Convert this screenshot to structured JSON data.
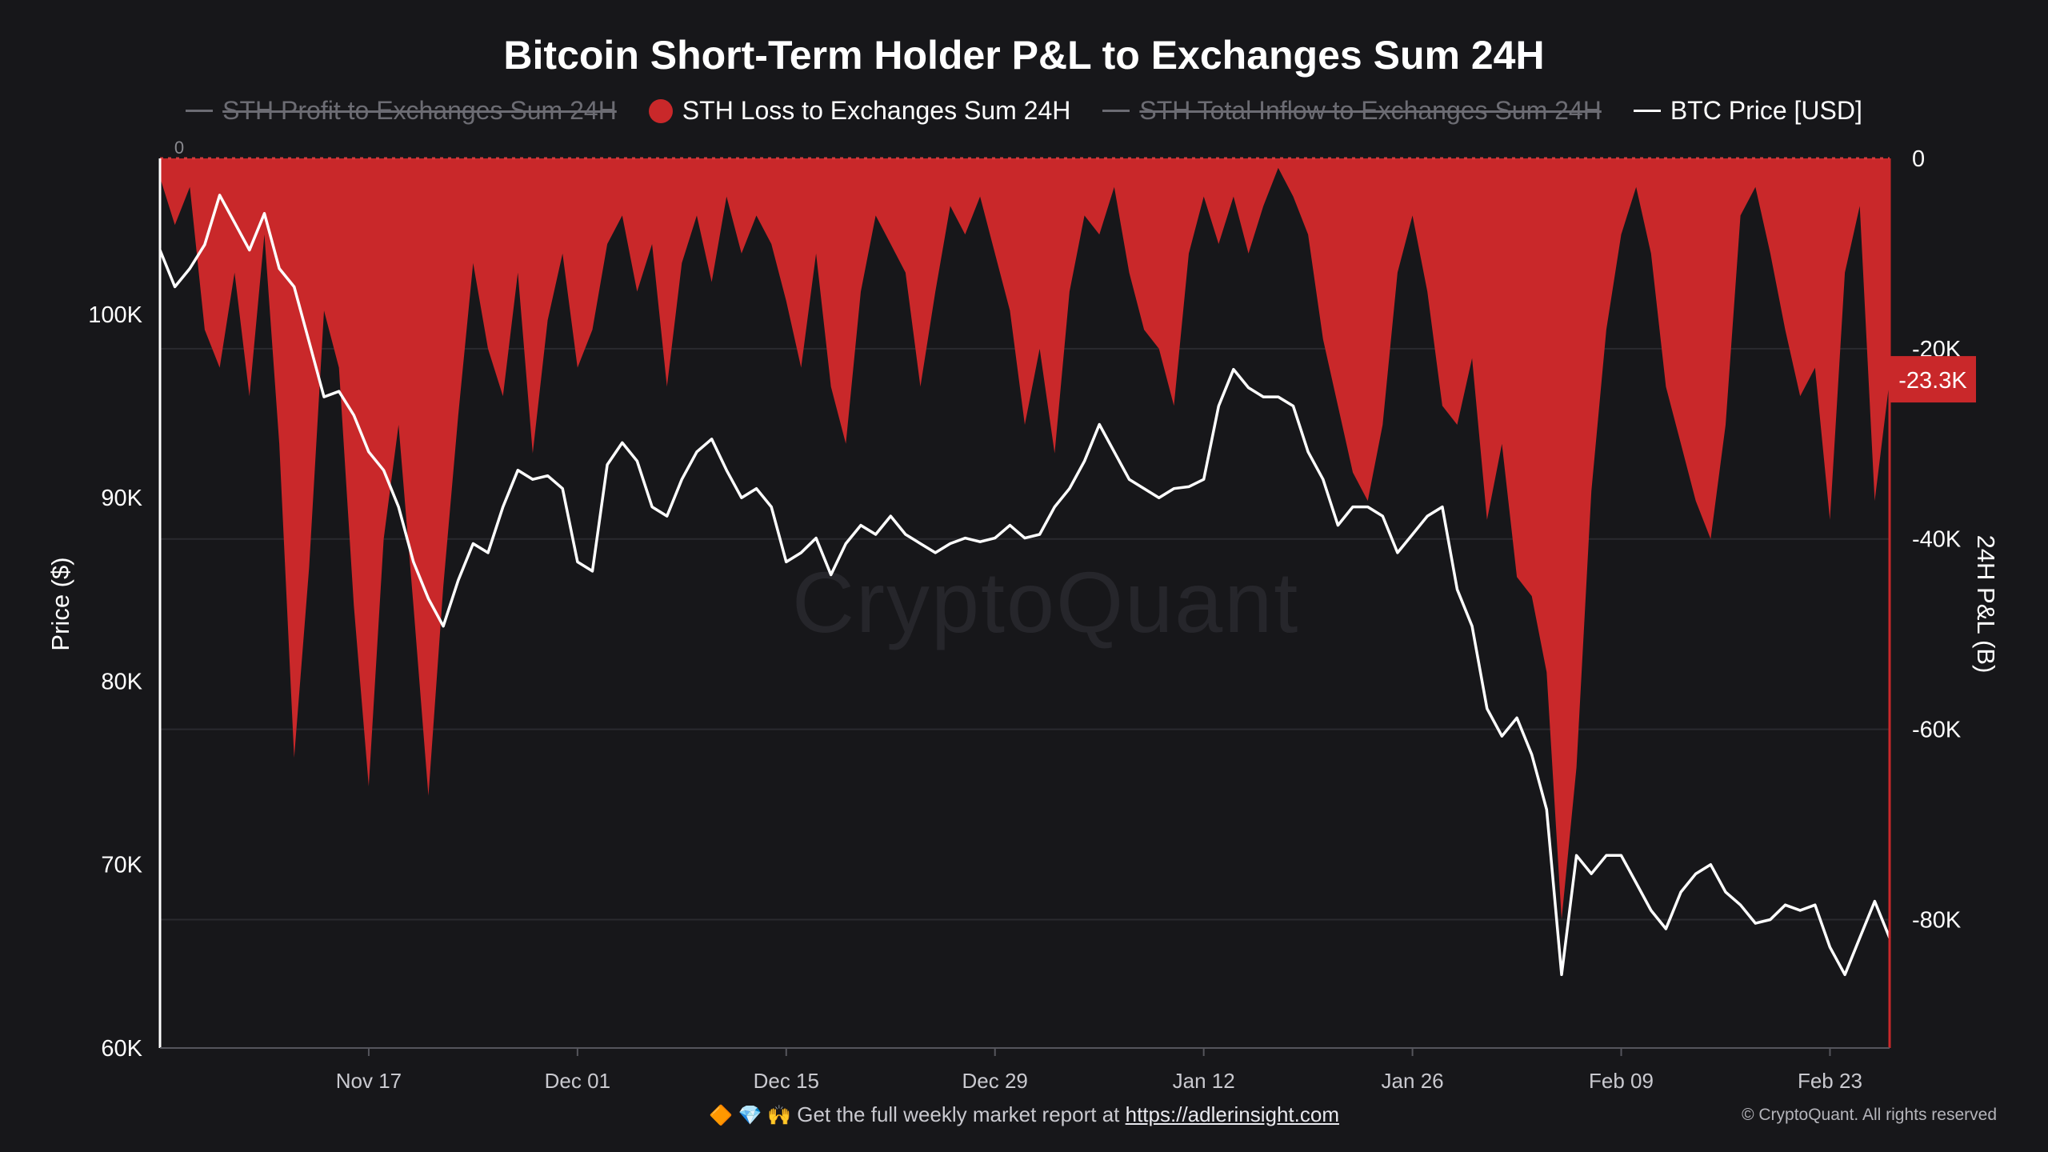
{
  "chart_data": {
    "type": "area",
    "title": "Bitcoin Short-Term Holder P&L to Exchanges Sum 24H",
    "watermark": "CryptoQuant",
    "legend": [
      {
        "name": "STH Profit to Exchanges Sum 24H",
        "visible": false,
        "marker": "line"
      },
      {
        "name": "STH Loss to Exchanges Sum 24H",
        "visible": true,
        "marker": "dot"
      },
      {
        "name": "STH Total Inflow to Exchanges Sum 24H",
        "visible": false,
        "marker": "line"
      },
      {
        "name": "BTC Price [USD]",
        "visible": true,
        "marker": "line"
      }
    ],
    "legend_placement": "top-center",
    "x_axis": {
      "ticks": [
        "Nov 17",
        "Dec 01",
        "Dec 15",
        "Dec 29",
        "Jan 12",
        "Jan 26",
        "Feb 09",
        "Feb 23"
      ],
      "first_date": "2025-11-03",
      "last_date": "2026-02-27"
    },
    "y_left": {
      "label": "Price ($)",
      "range": [
        60000,
        108500
      ],
      "ticks": [
        {
          "value": 60000,
          "label": "60K"
        },
        {
          "value": 70000,
          "label": "70K"
        },
        {
          "value": 80000,
          "label": "80K"
        },
        {
          "value": 90000,
          "label": "90K"
        },
        {
          "value": 100000,
          "label": "100K"
        }
      ],
      "top_label": "0"
    },
    "y_right": {
      "label": "24H P&L (B)",
      "range": [
        -93500,
        0
      ],
      "ticks": [
        {
          "value": 0,
          "label": "0"
        },
        {
          "value": -20000,
          "label": "-20K"
        },
        {
          "value": -40000,
          "label": "-40K"
        },
        {
          "value": -60000,
          "label": "-60K"
        },
        {
          "value": -80000,
          "label": "-80K"
        }
      ],
      "current": {
        "value": -23300,
        "label": "-23.3K"
      }
    },
    "grid": true,
    "colors": {
      "loss": "#c9282a",
      "price": "#ffffff",
      "background": "#17171a",
      "grid": "#2a2a2f"
    },
    "series": [
      {
        "name": "STH Loss to Exchanges Sum 24H",
        "axis": "right",
        "style": "area",
        "points": [
          [
            "2025-11-03",
            -2000
          ],
          [
            "2025-11-04",
            -7000
          ],
          [
            "2025-11-05",
            -3000
          ],
          [
            "2025-11-06",
            -18000
          ],
          [
            "2025-11-07",
            -22000
          ],
          [
            "2025-11-08",
            -12000
          ],
          [
            "2025-11-09",
            -25000
          ],
          [
            "2025-11-10",
            -8000
          ],
          [
            "2025-11-11",
            -30000
          ],
          [
            "2025-11-12",
            -63000
          ],
          [
            "2025-11-13",
            -43000
          ],
          [
            "2025-11-14",
            -16000
          ],
          [
            "2025-11-15",
            -22000
          ],
          [
            "2025-11-16",
            -47000
          ],
          [
            "2025-11-17",
            -66000
          ],
          [
            "2025-11-18",
            -40000
          ],
          [
            "2025-11-19",
            -28000
          ],
          [
            "2025-11-20",
            -47000
          ],
          [
            "2025-11-21",
            -67000
          ],
          [
            "2025-11-22",
            -45000
          ],
          [
            "2025-11-23",
            -27000
          ],
          [
            "2025-11-24",
            -11000
          ],
          [
            "2025-11-25",
            -20000
          ],
          [
            "2025-11-26",
            -25000
          ],
          [
            "2025-11-27",
            -12000
          ],
          [
            "2025-11-28",
            -31000
          ],
          [
            "2025-11-29",
            -17000
          ],
          [
            "2025-11-30",
            -10000
          ],
          [
            "2025-12-01",
            -22000
          ],
          [
            "2025-12-02",
            -18000
          ],
          [
            "2025-12-03",
            -9000
          ],
          [
            "2025-12-04",
            -6000
          ],
          [
            "2025-12-05",
            -14000
          ],
          [
            "2025-12-06",
            -9000
          ],
          [
            "2025-12-07",
            -24000
          ],
          [
            "2025-12-08",
            -11000
          ],
          [
            "2025-12-09",
            -6000
          ],
          [
            "2025-12-10",
            -13000
          ],
          [
            "2025-12-11",
            -4000
          ],
          [
            "2025-12-12",
            -10000
          ],
          [
            "2025-12-13",
            -6000
          ],
          [
            "2025-12-14",
            -9000
          ],
          [
            "2025-12-15",
            -15000
          ],
          [
            "2025-12-16",
            -22000
          ],
          [
            "2025-12-17",
            -10000
          ],
          [
            "2025-12-18",
            -24000
          ],
          [
            "2025-12-19",
            -30000
          ],
          [
            "2025-12-20",
            -14000
          ],
          [
            "2025-12-21",
            -6000
          ],
          [
            "2025-12-22",
            -9000
          ],
          [
            "2025-12-23",
            -12000
          ],
          [
            "2025-12-24",
            -24000
          ],
          [
            "2025-12-25",
            -14000
          ],
          [
            "2025-12-26",
            -5000
          ],
          [
            "2025-12-27",
            -8000
          ],
          [
            "2025-12-28",
            -4000
          ],
          [
            "2025-12-29",
            -10000
          ],
          [
            "2025-12-30",
            -16000
          ],
          [
            "2025-12-31",
            -28000
          ],
          [
            "2026-01-01",
            -20000
          ],
          [
            "2026-01-02",
            -31000
          ],
          [
            "2026-01-03",
            -14000
          ],
          [
            "2026-01-04",
            -6000
          ],
          [
            "2026-01-05",
            -8000
          ],
          [
            "2026-01-06",
            -3000
          ],
          [
            "2026-01-07",
            -12000
          ],
          [
            "2026-01-08",
            -18000
          ],
          [
            "2026-01-09",
            -20000
          ],
          [
            "2026-01-10",
            -26000
          ],
          [
            "2026-01-11",
            -10000
          ],
          [
            "2026-01-12",
            -4000
          ],
          [
            "2026-01-13",
            -9000
          ],
          [
            "2026-01-14",
            -4000
          ],
          [
            "2026-01-15",
            -10000
          ],
          [
            "2026-01-16",
            -5000
          ],
          [
            "2026-01-17",
            -1000
          ],
          [
            "2026-01-18",
            -4000
          ],
          [
            "2026-01-19",
            -8000
          ],
          [
            "2026-01-20",
            -19000
          ],
          [
            "2026-01-21",
            -26000
          ],
          [
            "2026-01-22",
            -33000
          ],
          [
            "2026-01-23",
            -36000
          ],
          [
            "2026-01-24",
            -28000
          ],
          [
            "2026-01-25",
            -12000
          ],
          [
            "2026-01-26",
            -6000
          ],
          [
            "2026-01-27",
            -14000
          ],
          [
            "2026-01-28",
            -26000
          ],
          [
            "2026-01-29",
            -28000
          ],
          [
            "2026-01-30",
            -21000
          ],
          [
            "2026-01-31",
            -38000
          ],
          [
            "2026-02-01",
            -30000
          ],
          [
            "2026-02-02",
            -44000
          ],
          [
            "2026-02-03",
            -46000
          ],
          [
            "2026-02-04",
            -54000
          ],
          [
            "2026-02-05",
            -80000
          ],
          [
            "2026-02-06",
            -64000
          ],
          [
            "2026-02-07",
            -35000
          ],
          [
            "2026-02-08",
            -18000
          ],
          [
            "2026-02-09",
            -8000
          ],
          [
            "2026-02-10",
            -3000
          ],
          [
            "2026-02-11",
            -10000
          ],
          [
            "2026-02-12",
            -24000
          ],
          [
            "2026-02-13",
            -30000
          ],
          [
            "2026-02-14",
            -36000
          ],
          [
            "2026-02-15",
            -40000
          ],
          [
            "2026-02-16",
            -28000
          ],
          [
            "2026-02-17",
            -6000
          ],
          [
            "2026-02-18",
            -3000
          ],
          [
            "2026-02-19",
            -10000
          ],
          [
            "2026-02-20",
            -18000
          ],
          [
            "2026-02-21",
            -25000
          ],
          [
            "2026-02-22",
            -22000
          ],
          [
            "2026-02-23",
            -38000
          ],
          [
            "2026-02-24",
            -12000
          ],
          [
            "2026-02-25",
            -5000
          ],
          [
            "2026-02-26",
            -36000
          ],
          [
            "2026-02-27",
            -23300
          ]
        ]
      },
      {
        "name": "BTC Price [USD]",
        "axis": "left",
        "style": "line",
        "points": [
          [
            "2025-11-03",
            103500
          ],
          [
            "2025-11-04",
            101500
          ],
          [
            "2025-11-05",
            102500
          ],
          [
            "2025-11-06",
            103800
          ],
          [
            "2025-11-07",
            106500
          ],
          [
            "2025-11-08",
            105000
          ],
          [
            "2025-11-09",
            103500
          ],
          [
            "2025-11-10",
            105500
          ],
          [
            "2025-11-11",
            102500
          ],
          [
            "2025-11-12",
            101500
          ],
          [
            "2025-11-13",
            98500
          ],
          [
            "2025-11-14",
            95500
          ],
          [
            "2025-11-15",
            95800
          ],
          [
            "2025-11-16",
            94500
          ],
          [
            "2025-11-17",
            92500
          ],
          [
            "2025-11-18",
            91500
          ],
          [
            "2025-11-19",
            89500
          ],
          [
            "2025-11-20",
            86500
          ],
          [
            "2025-11-21",
            84500
          ],
          [
            "2025-11-22",
            83000
          ],
          [
            "2025-11-23",
            85500
          ],
          [
            "2025-11-24",
            87500
          ],
          [
            "2025-11-25",
            87000
          ],
          [
            "2025-11-26",
            89500
          ],
          [
            "2025-11-27",
            91500
          ],
          [
            "2025-11-28",
            91000
          ],
          [
            "2025-11-29",
            91200
          ],
          [
            "2025-11-30",
            90500
          ],
          [
            "2025-12-01",
            86500
          ],
          [
            "2025-12-02",
            86000
          ],
          [
            "2025-12-03",
            91800
          ],
          [
            "2025-12-04",
            93000
          ],
          [
            "2025-12-05",
            92000
          ],
          [
            "2025-12-06",
            89500
          ],
          [
            "2025-12-07",
            89000
          ],
          [
            "2025-12-08",
            91000
          ],
          [
            "2025-12-09",
            92500
          ],
          [
            "2025-12-10",
            93200
          ],
          [
            "2025-12-11",
            91500
          ],
          [
            "2025-12-12",
            90000
          ],
          [
            "2025-12-13",
            90500
          ],
          [
            "2025-12-14",
            89500
          ],
          [
            "2025-12-15",
            86500
          ],
          [
            "2025-12-16",
            87000
          ],
          [
            "2025-12-17",
            87800
          ],
          [
            "2025-12-18",
            85800
          ],
          [
            "2025-12-19",
            87500
          ],
          [
            "2025-12-20",
            88500
          ],
          [
            "2025-12-21",
            88000
          ],
          [
            "2025-12-22",
            89000
          ],
          [
            "2025-12-23",
            88000
          ],
          [
            "2025-12-24",
            87500
          ],
          [
            "2025-12-25",
            87000
          ],
          [
            "2025-12-26",
            87500
          ],
          [
            "2025-12-27",
            87800
          ],
          [
            "2025-12-28",
            87600
          ],
          [
            "2025-12-29",
            87800
          ],
          [
            "2025-12-30",
            88500
          ],
          [
            "2025-12-31",
            87800
          ],
          [
            "2026-01-01",
            88000
          ],
          [
            "2026-01-02",
            89500
          ],
          [
            "2026-01-03",
            90500
          ],
          [
            "2026-01-04",
            92000
          ],
          [
            "2026-01-05",
            94000
          ],
          [
            "2026-01-06",
            92500
          ],
          [
            "2026-01-07",
            91000
          ],
          [
            "2026-01-08",
            90500
          ],
          [
            "2026-01-09",
            90000
          ],
          [
            "2026-01-10",
            90500
          ],
          [
            "2026-01-11",
            90600
          ],
          [
            "2026-01-12",
            91000
          ],
          [
            "2026-01-13",
            95000
          ],
          [
            "2026-01-14",
            97000
          ],
          [
            "2026-01-15",
            96000
          ],
          [
            "2026-01-16",
            95500
          ],
          [
            "2026-01-17",
            95500
          ],
          [
            "2026-01-18",
            95000
          ],
          [
            "2026-01-19",
            92500
          ],
          [
            "2026-01-20",
            91000
          ],
          [
            "2026-01-21",
            88500
          ],
          [
            "2026-01-22",
            89500
          ],
          [
            "2026-01-23",
            89500
          ],
          [
            "2026-01-24",
            89000
          ],
          [
            "2026-01-25",
            87000
          ],
          [
            "2026-01-26",
            88000
          ],
          [
            "2026-01-27",
            89000
          ],
          [
            "2026-01-28",
            89500
          ],
          [
            "2026-01-29",
            85000
          ],
          [
            "2026-01-30",
            83000
          ],
          [
            "2026-01-31",
            78500
          ],
          [
            "2026-02-01",
            77000
          ],
          [
            "2026-02-02",
            78000
          ],
          [
            "2026-02-03",
            76000
          ],
          [
            "2026-02-04",
            73000
          ],
          [
            "2026-02-05",
            64000
          ],
          [
            "2026-02-06",
            70500
          ],
          [
            "2026-02-07",
            69500
          ],
          [
            "2026-02-08",
            70500
          ],
          [
            "2026-02-09",
            70500
          ],
          [
            "2026-02-10",
            69000
          ],
          [
            "2026-02-11",
            67500
          ],
          [
            "2026-02-12",
            66500
          ],
          [
            "2026-02-13",
            68500
          ],
          [
            "2026-02-14",
            69500
          ],
          [
            "2026-02-15",
            70000
          ],
          [
            "2026-02-16",
            68500
          ],
          [
            "2026-02-17",
            67800
          ],
          [
            "2026-02-18",
            66800
          ],
          [
            "2026-02-19",
            67000
          ],
          [
            "2026-02-20",
            67800
          ],
          [
            "2026-02-21",
            67500
          ],
          [
            "2026-02-22",
            67800
          ],
          [
            "2026-02-23",
            65500
          ],
          [
            "2026-02-24",
            64000
          ],
          [
            "2026-02-25",
            66000
          ],
          [
            "2026-02-26",
            68000
          ],
          [
            "2026-02-27",
            66000
          ]
        ]
      }
    ]
  },
  "footer": {
    "text": "Get the full weekly market report at",
    "link": "https://adlerinsight.com",
    "emojis": "🔶 💎 🙌",
    "copyright": "© CryptoQuant. All rights reserved"
  }
}
